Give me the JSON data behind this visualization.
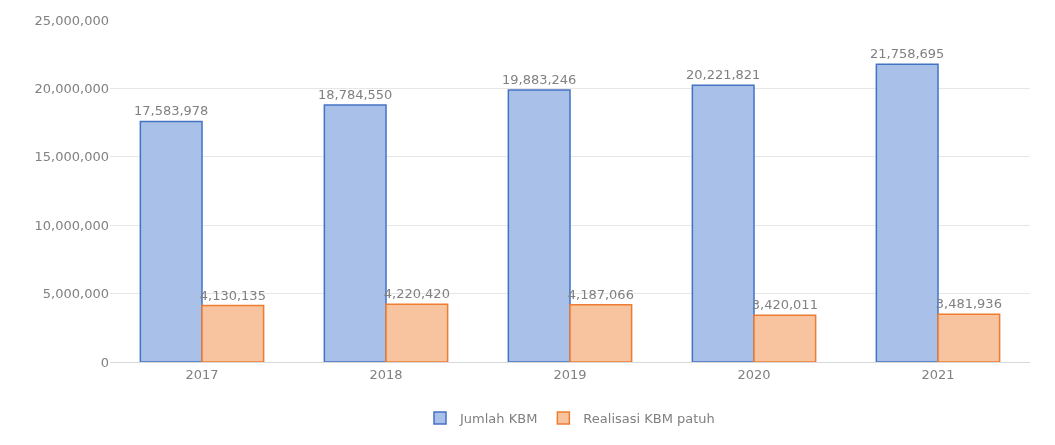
{
  "chart_data": {
    "type": "bar",
    "categories": [
      "2017",
      "2018",
      "2019",
      "2020",
      "2021"
    ],
    "series": [
      {
        "name": "Jumlah KBM",
        "color": "#a9c0e8",
        "values": [
          17583978,
          18784550,
          19883246,
          20221821,
          21758695
        ],
        "value_labels": [
          "17,583,978",
          "18,784,550",
          "19,883,246",
          "20,221,821",
          "21,758,695"
        ]
      },
      {
        "name": "Realisasi KBM patuh",
        "color": "#f8c39f",
        "values": [
          4130135,
          4220420,
          4187066,
          3420011,
          3481936
        ],
        "value_labels": [
          "4,130,135",
          "4,220,420",
          "4,187,066",
          "3,420,011",
          "3,481,936"
        ]
      }
    ],
    "ylim": [
      0,
      25000000
    ],
    "yticks": [
      {
        "value": 0,
        "label": "0"
      },
      {
        "value": 5000000,
        "label": "5,000,000"
      },
      {
        "value": 10000000,
        "label": "10,000,000"
      },
      {
        "value": 15000000,
        "label": "15,000,000"
      },
      {
        "value": 20000000,
        "label": "20,000,000"
      },
      {
        "value": 25000000,
        "label": "25,000,000"
      }
    ],
    "grid": "y",
    "legend": "bottom"
  }
}
